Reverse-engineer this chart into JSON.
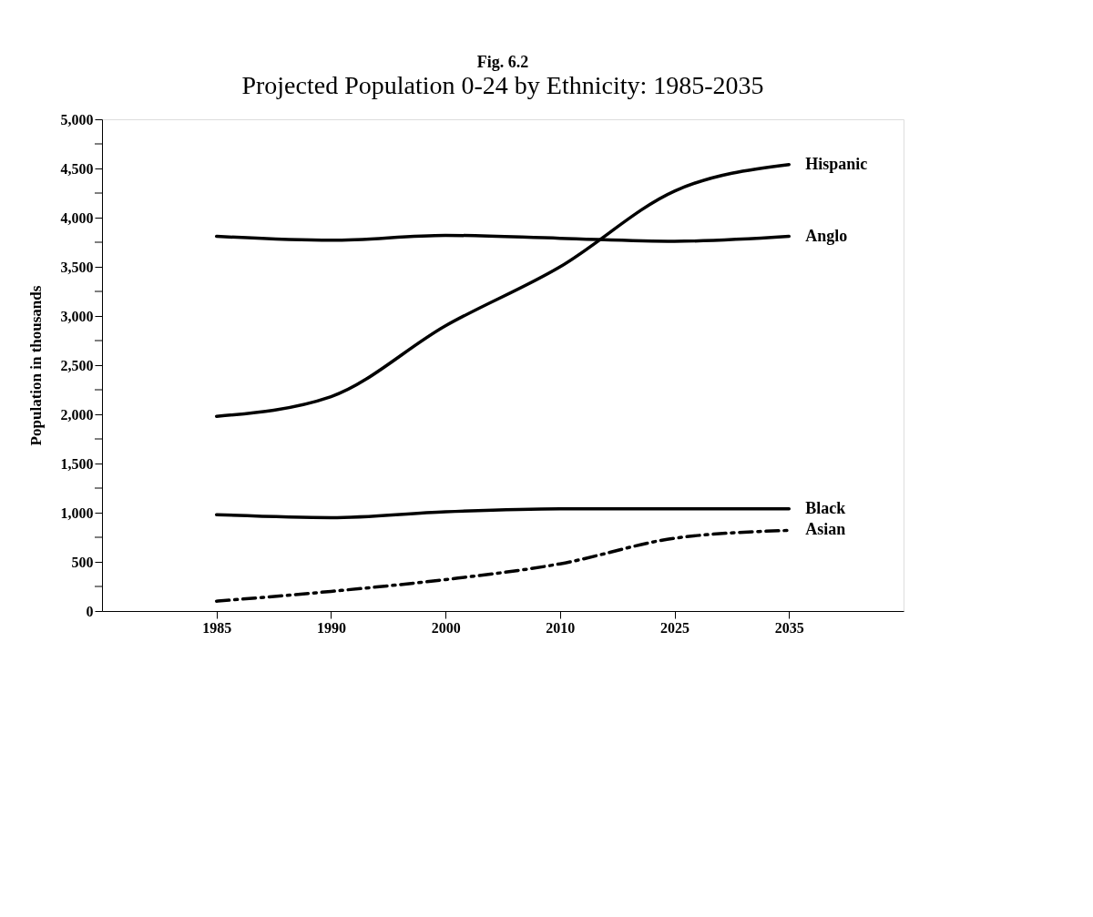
{
  "chart_data": {
    "type": "line",
    "title": "Fig. 6.2",
    "subtitle": "Projected Population 0-24 by Ethnicity: 1985-2035",
    "ylabel": "Population in thousands",
    "categories": [
      "1985",
      "1990",
      "2000",
      "2010",
      "2025",
      "2035"
    ],
    "series": [
      {
        "name": "Hispanic",
        "color": "#000000",
        "line_style": "solid",
        "values": [
          1980,
          2180,
          2900,
          3500,
          4270,
          4540
        ]
      },
      {
        "name": "Anglo",
        "color": "#000000",
        "line_style": "solid",
        "values": [
          3810,
          3770,
          3820,
          3790,
          3760,
          3810
        ]
      },
      {
        "name": "Black",
        "color": "#000000",
        "line_style": "solid",
        "values": [
          980,
          950,
          1010,
          1040,
          1040,
          1040
        ]
      },
      {
        "name": "Asian",
        "color": "#000000",
        "line_style": "dashed",
        "values": [
          100,
          200,
          320,
          480,
          740,
          820
        ]
      }
    ],
    "ylim": [
      0,
      5000
    ],
    "yticks": [
      0,
      {
        "value": 250,
        "label": null
      },
      {
        "value": 500,
        "label": "500"
      },
      {
        "value": 750,
        "label": null
      },
      {
        "value": 1000,
        "label": "1,000"
      },
      {
        "value": 1250,
        "label": null
      },
      {
        "value": 1500,
        "label": "1,500"
      },
      {
        "value": 1750,
        "label": null
      },
      {
        "value": 2000,
        "label": "2,000"
      },
      {
        "value": 2250,
        "label": null
      },
      {
        "value": 2500,
        "label": "2,500"
      },
      {
        "value": 2750,
        "label": null
      },
      {
        "value": 3000,
        "label": "3,000"
      },
      {
        "value": 3250,
        "label": null
      },
      {
        "value": 3500,
        "label": "3,500"
      },
      {
        "value": 3750,
        "label": null
      },
      {
        "value": 4000,
        "label": "4,000"
      },
      {
        "value": 4250,
        "label": null
      },
      {
        "value": 4500,
        "label": "4,500"
      },
      {
        "value": 4750,
        "label": null
      },
      {
        "value": 5000,
        "label": "5,000"
      }
    ],
    "grid": false,
    "legend": false,
    "marker": "none"
  }
}
